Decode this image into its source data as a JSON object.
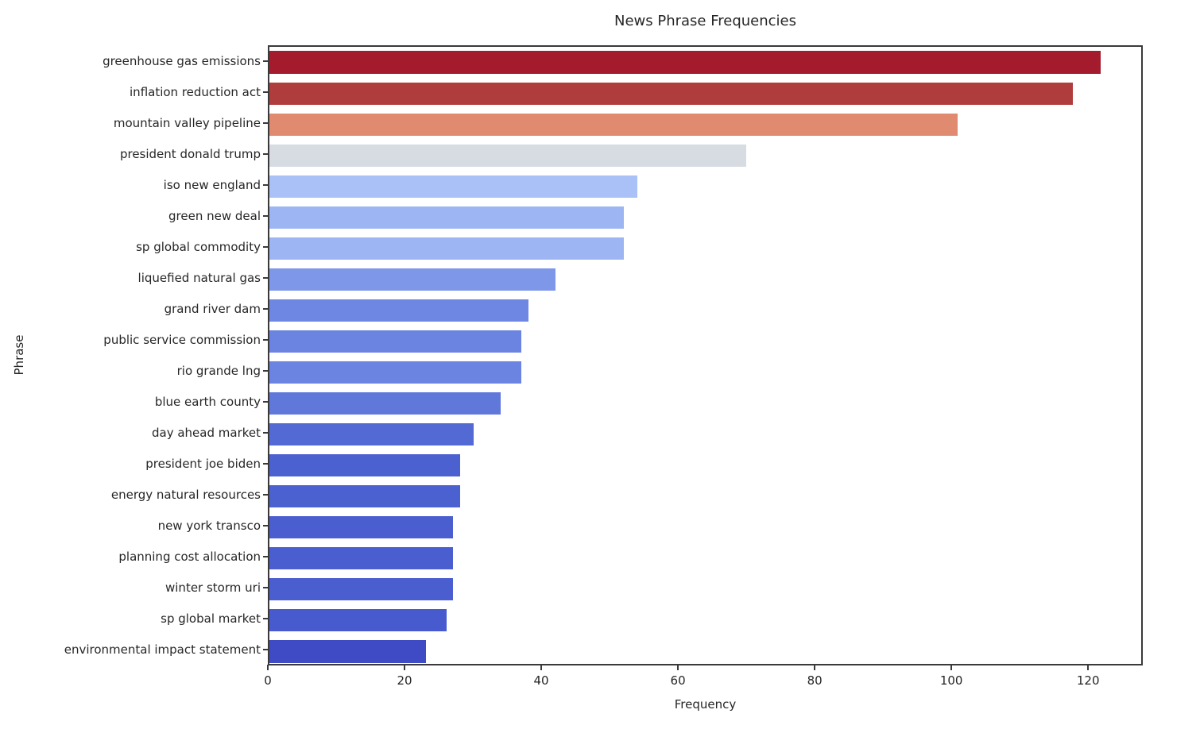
{
  "title": "News Phrase Frequencies",
  "x_axis_label": "Frequency",
  "y_axis_label": "Phrase",
  "colors": {
    "background": "#ffffff",
    "text": "#262626",
    "spine": "#3a3a3a"
  },
  "chart_data": {
    "type": "bar",
    "orientation": "horizontal",
    "title": "News Phrase Frequencies",
    "xlabel": "Frequency",
    "ylabel": "Phrase",
    "xlim": [
      0,
      128
    ],
    "x_ticks": [
      0,
      20,
      40,
      60,
      80,
      100,
      120
    ],
    "grid": false,
    "legend": "none",
    "colormap": "coolwarm",
    "categories": [
      "greenhouse gas emissions",
      "inflation reduction act",
      "mountain valley pipeline",
      "president donald trump",
      "iso new england",
      "green new deal",
      "sp global commodity",
      "liquefied natural gas",
      "grand river dam",
      "public service commission",
      "rio grande lng",
      "blue earth county",
      "day ahead market",
      "president joe biden",
      "energy natural resources",
      "new york transco",
      "planning cost allocation",
      "winter storm uri",
      "sp global market",
      "environmental impact statement"
    ],
    "values": [
      122,
      118,
      101,
      70,
      54,
      52,
      52,
      42,
      38,
      37,
      37,
      34,
      30,
      28,
      28,
      27,
      27,
      27,
      26,
      23
    ],
    "bar_colors": [
      "#a31b2d",
      "#b03d3d",
      "#e08a6f",
      "#d7dce3",
      "#a9c1f6",
      "#9db6f3",
      "#9db6f3",
      "#7e97e9",
      "#6e87e3",
      "#6b84e1",
      "#6b84e1",
      "#6178db",
      "#5369d4",
      "#4c61d0",
      "#4c61d0",
      "#4a5ecf",
      "#4a5ecf",
      "#4a5ecf",
      "#485bce",
      "#3e4bc5"
    ]
  }
}
